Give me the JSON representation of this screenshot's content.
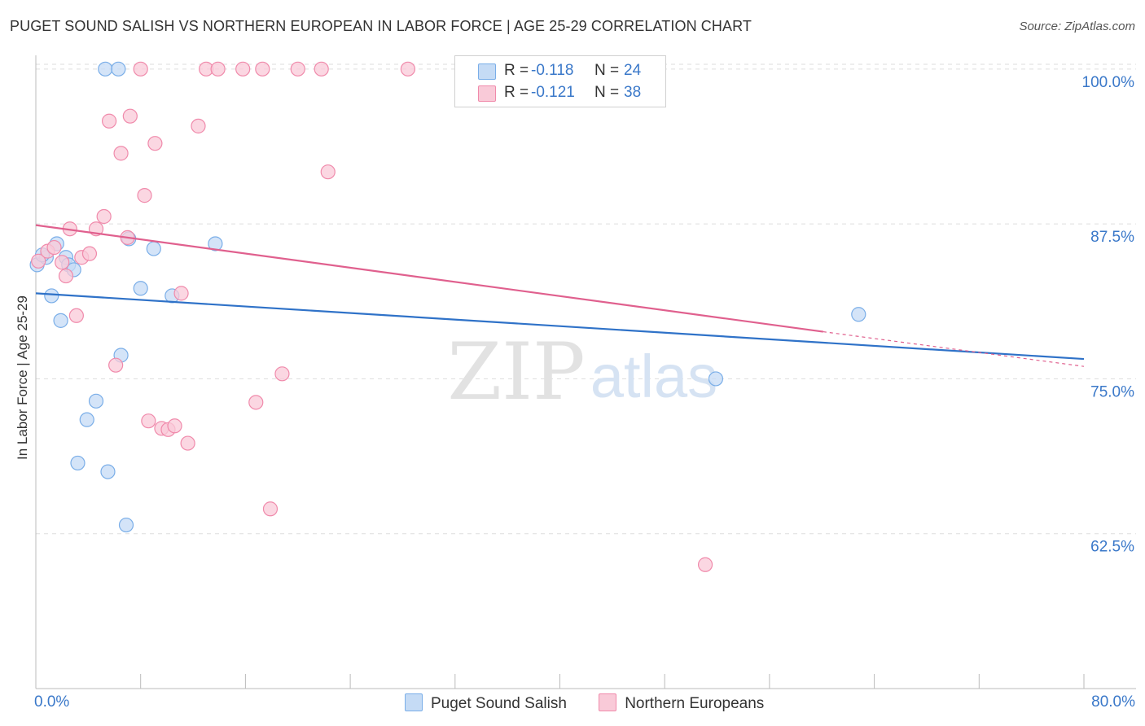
{
  "title": "PUGET SOUND SALISH VS NORTHERN EUROPEAN IN LABOR FORCE | AGE 25-29 CORRELATION CHART",
  "source": "Source: ZipAtlas.com",
  "watermark": {
    "zip": "ZIP",
    "atlas": "atlas"
  },
  "legend_top": {
    "r_label": "R =",
    "n_label": "N =",
    "series": [
      {
        "r": "-0.118",
        "n": "24"
      },
      {
        "r": "-0.121",
        "n": "38"
      }
    ]
  },
  "chart_data": {
    "type": "scatter",
    "title": "PUGET SOUND SALISH VS NORTHERN EUROPEAN IN LABOR FORCE | AGE 25-29 CORRELATION CHART",
    "xlabel": "",
    "ylabel": "In Labor Force | Age 25-29",
    "xlim": [
      0,
      80
    ],
    "ylim": [
      50,
      101.5
    ],
    "x_tick_labels": [
      "0.0%",
      "80.0%"
    ],
    "y_ticks": [
      62.5,
      75.0,
      87.5,
      100.0
    ],
    "y_tick_labels": [
      "62.5%",
      "75.0%",
      "87.5%",
      "100.0%"
    ],
    "legend_position": "bottom",
    "series": [
      {
        "name": "Puget Sound Salish",
        "color": "#7aaee8",
        "fill": "#c5dbf5",
        "line_color": "#2f72c8",
        "points": [
          [
            0.1,
            84.2
          ],
          [
            0.8,
            84.8
          ],
          [
            1.2,
            81.7
          ],
          [
            1.6,
            85.9
          ],
          [
            1.9,
            79.7
          ],
          [
            2.3,
            84.8
          ],
          [
            2.5,
            84.2
          ],
          [
            2.9,
            83.8
          ],
          [
            3.2,
            68.2
          ],
          [
            3.9,
            71.7
          ],
          [
            4.6,
            73.2
          ],
          [
            5.3,
            100.0
          ],
          [
            5.5,
            67.5
          ],
          [
            6.3,
            100.0
          ],
          [
            6.5,
            76.9
          ],
          [
            6.9,
            63.2
          ],
          [
            7.1,
            86.3
          ],
          [
            8.0,
            82.3
          ],
          [
            9.0,
            85.5
          ],
          [
            10.4,
            81.7
          ],
          [
            13.7,
            85.9
          ],
          [
            51.9,
            75.0
          ],
          [
            62.8,
            80.2
          ],
          [
            0.5,
            85.0
          ]
        ],
        "trend": {
          "x": [
            0,
            80
          ],
          "y": [
            81.9,
            76.6
          ]
        }
      },
      {
        "name": "Northern Europeans",
        "color": "#f08aab",
        "fill": "#f9cad8",
        "line_color": "#e0608e",
        "points": [
          [
            0.2,
            84.5
          ],
          [
            0.9,
            85.3
          ],
          [
            1.4,
            85.6
          ],
          [
            2.0,
            84.4
          ],
          [
            2.3,
            83.3
          ],
          [
            2.6,
            87.1
          ],
          [
            3.1,
            80.1
          ],
          [
            3.5,
            84.8
          ],
          [
            4.1,
            85.1
          ],
          [
            4.6,
            87.1
          ],
          [
            5.2,
            88.1
          ],
          [
            5.6,
            95.8
          ],
          [
            6.1,
            76.1
          ],
          [
            6.5,
            93.2
          ],
          [
            7.0,
            86.4
          ],
          [
            7.2,
            96.2
          ],
          [
            8.3,
            89.8
          ],
          [
            8.6,
            71.6
          ],
          [
            9.1,
            94.0
          ],
          [
            9.6,
            71.0
          ],
          [
            10.1,
            70.9
          ],
          [
            10.6,
            71.2
          ],
          [
            11.1,
            81.9
          ],
          [
            11.6,
            69.8
          ],
          [
            12.4,
            95.4
          ],
          [
            13.0,
            100.0
          ],
          [
            13.9,
            100.0
          ],
          [
            15.8,
            100.0
          ],
          [
            16.8,
            73.1
          ],
          [
            17.3,
            100.0
          ],
          [
            17.9,
            64.5
          ],
          [
            18.8,
            75.4
          ],
          [
            20.0,
            100.0
          ],
          [
            21.8,
            100.0
          ],
          [
            22.3,
            91.7
          ],
          [
            28.4,
            100.0
          ],
          [
            51.1,
            60.0
          ],
          [
            8.0,
            100.0
          ]
        ],
        "trend": {
          "x": [
            0,
            60.1
          ],
          "y": [
            87.4,
            78.8
          ]
        },
        "trend_dashed": {
          "x": [
            60.1,
            80
          ],
          "y": [
            78.8,
            76.0
          ]
        }
      }
    ]
  }
}
